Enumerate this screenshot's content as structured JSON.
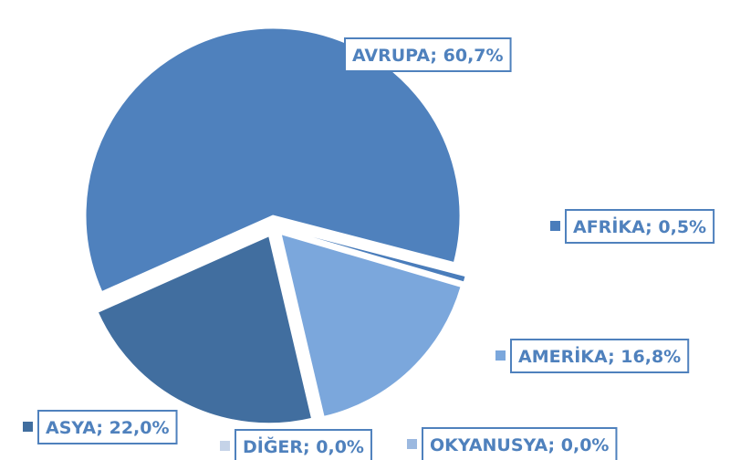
{
  "chart_data": {
    "type": "pie",
    "categories": [
      "AVRUPA",
      "AFRİKA",
      "AMERİKA",
      "OKYANUSYA",
      "DİĞER",
      "ASYA"
    ],
    "values": [
      60.7,
      0.5,
      16.8,
      0.0,
      0.0,
      22.0
    ],
    "value_labels": [
      "60,7%",
      "0,5%",
      "16,8%",
      "0,0%",
      "0,0%",
      "22,0%"
    ],
    "label_separator": "; ",
    "colors": [
      "#4f81bd",
      "#4a7dbb",
      "#7ba7dc",
      "#9cb9e0",
      "#c5d3e8",
      "#416e9f"
    ]
  }
}
